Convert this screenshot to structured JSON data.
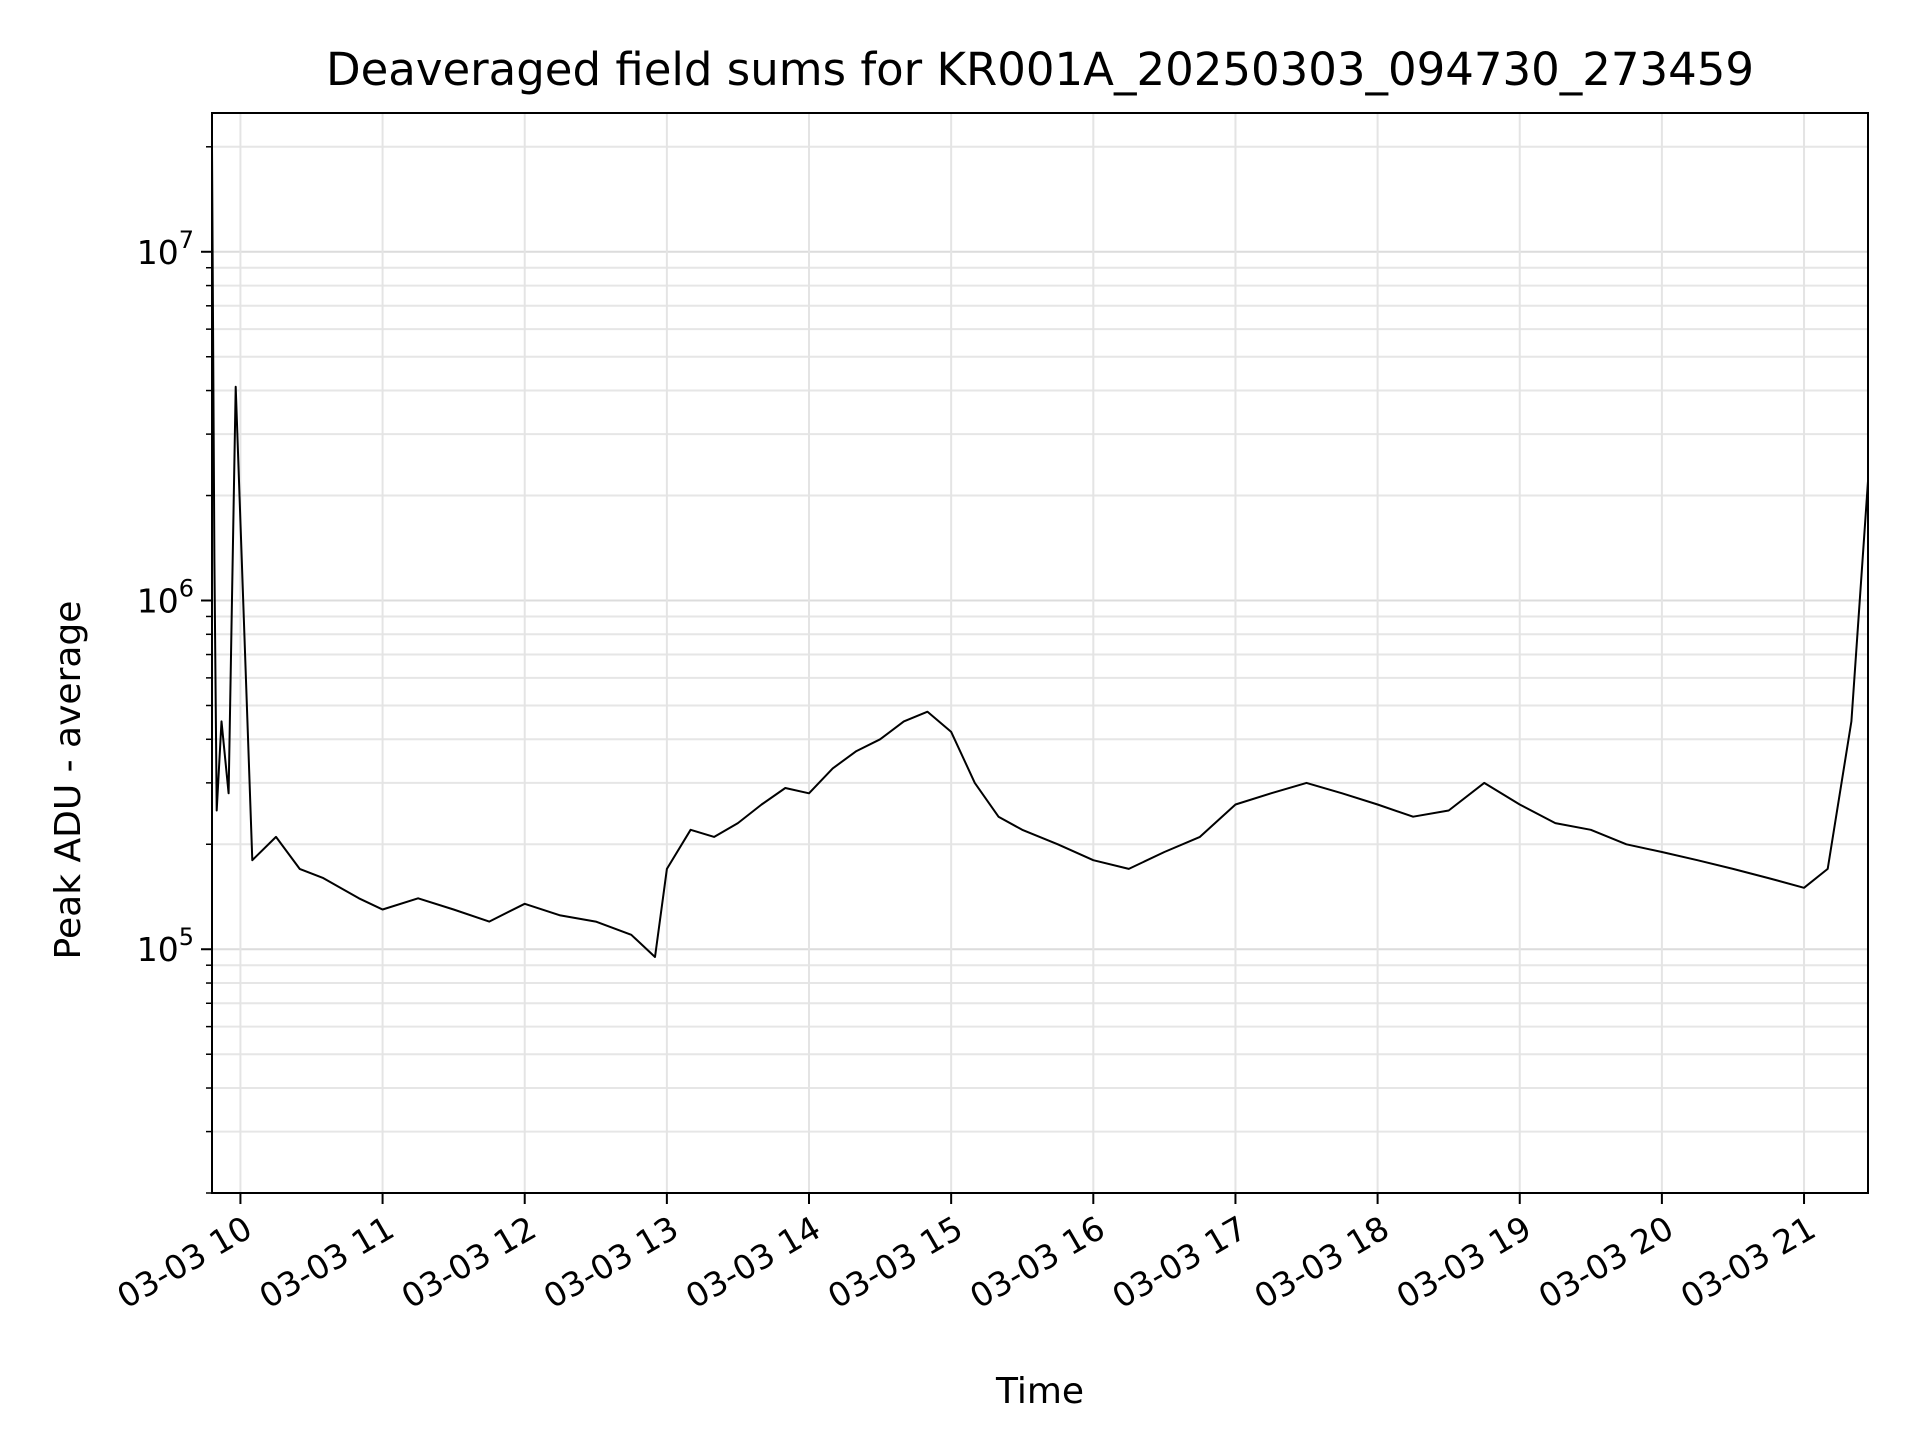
{
  "chart_data": {
    "type": "line",
    "title": "Deaveraged field sums for KR001A_20250303_094730_273459",
    "xlabel": "Time",
    "ylabel": "Peak ADU - average",
    "yscale": "log",
    "ylim": [
      20000,
      25000000
    ],
    "xlim": [
      "2025-03-03 09:48",
      "2025-03-03 21:27"
    ],
    "grid": true,
    "line_color": "#000000",
    "x_ticks": [
      {
        "label": "03-03 10",
        "value": "2025-03-03 10:00"
      },
      {
        "label": "03-03 11",
        "value": "2025-03-03 11:00"
      },
      {
        "label": "03-03 12",
        "value": "2025-03-03 12:00"
      },
      {
        "label": "03-03 13",
        "value": "2025-03-03 13:00"
      },
      {
        "label": "03-03 14",
        "value": "2025-03-03 14:00"
      },
      {
        "label": "03-03 15",
        "value": "2025-03-03 15:00"
      },
      {
        "label": "03-03 16",
        "value": "2025-03-03 16:00"
      },
      {
        "label": "03-03 17",
        "value": "2025-03-03 17:00"
      },
      {
        "label": "03-03 18",
        "value": "2025-03-03 18:00"
      },
      {
        "label": "03-03 19",
        "value": "2025-03-03 19:00"
      },
      {
        "label": "03-03 20",
        "value": "2025-03-03 20:00"
      },
      {
        "label": "03-03 21",
        "value": "2025-03-03 21:00"
      }
    ],
    "y_ticks": [
      {
        "base": "10",
        "exp": "5",
        "value": 100000
      },
      {
        "base": "10",
        "exp": "6",
        "value": 1000000
      },
      {
        "base": "10",
        "exp": "7",
        "value": 10000000
      }
    ],
    "series": [
      {
        "x": [
          "2025-03-03 09:48",
          "2025-03-03 09:49",
          "2025-03-03 09:50",
          "2025-03-03 09:52",
          "2025-03-03 09:55",
          "2025-03-03 09:58",
          "2025-03-03 10:05",
          "2025-03-03 10:15",
          "2025-03-03 10:25",
          "2025-03-03 10:35",
          "2025-03-03 10:50",
          "2025-03-03 11:00",
          "2025-03-03 11:15",
          "2025-03-03 11:30",
          "2025-03-03 11:45",
          "2025-03-03 12:00",
          "2025-03-03 12:15",
          "2025-03-03 12:30",
          "2025-03-03 12:45",
          "2025-03-03 12:55",
          "2025-03-03 13:00",
          "2025-03-03 13:10",
          "2025-03-03 13:20",
          "2025-03-03 13:30",
          "2025-03-03 13:40",
          "2025-03-03 13:50",
          "2025-03-03 14:00",
          "2025-03-03 14:10",
          "2025-03-03 14:20",
          "2025-03-03 14:30",
          "2025-03-03 14:40",
          "2025-03-03 14:50",
          "2025-03-03 15:00",
          "2025-03-03 15:10",
          "2025-03-03 15:20",
          "2025-03-03 15:30",
          "2025-03-03 15:45",
          "2025-03-03 16:00",
          "2025-03-03 16:15",
          "2025-03-03 16:30",
          "2025-03-03 16:45",
          "2025-03-03 17:00",
          "2025-03-03 17:15",
          "2025-03-03 17:30",
          "2025-03-03 17:45",
          "2025-03-03 18:00",
          "2025-03-03 18:15",
          "2025-03-03 18:30",
          "2025-03-03 18:45",
          "2025-03-03 19:00",
          "2025-03-03 19:15",
          "2025-03-03 19:30",
          "2025-03-03 19:45",
          "2025-03-03 20:00",
          "2025-03-03 20:15",
          "2025-03-03 20:30",
          "2025-03-03 20:45",
          "2025-03-03 21:00",
          "2025-03-03 21:10",
          "2025-03-03 21:20",
          "2025-03-03 21:27"
        ],
        "y": [
          20000000,
          1300000,
          250000,
          450000,
          280000,
          4100000,
          180000,
          210000,
          170000,
          160000,
          140000,
          130000,
          140000,
          130000,
          120000,
          135000,
          125000,
          120000,
          110000,
          95000,
          170000,
          220000,
          210000,
          230000,
          260000,
          290000,
          280000,
          330000,
          370000,
          400000,
          450000,
          480000,
          420000,
          300000,
          240000,
          220000,
          200000,
          180000,
          170000,
          190000,
          210000,
          260000,
          280000,
          300000,
          280000,
          260000,
          240000,
          250000,
          300000,
          260000,
          230000,
          220000,
          200000,
          190000,
          180000,
          170000,
          160000,
          150000,
          170000,
          450000,
          2200000
        ]
      }
    ]
  }
}
